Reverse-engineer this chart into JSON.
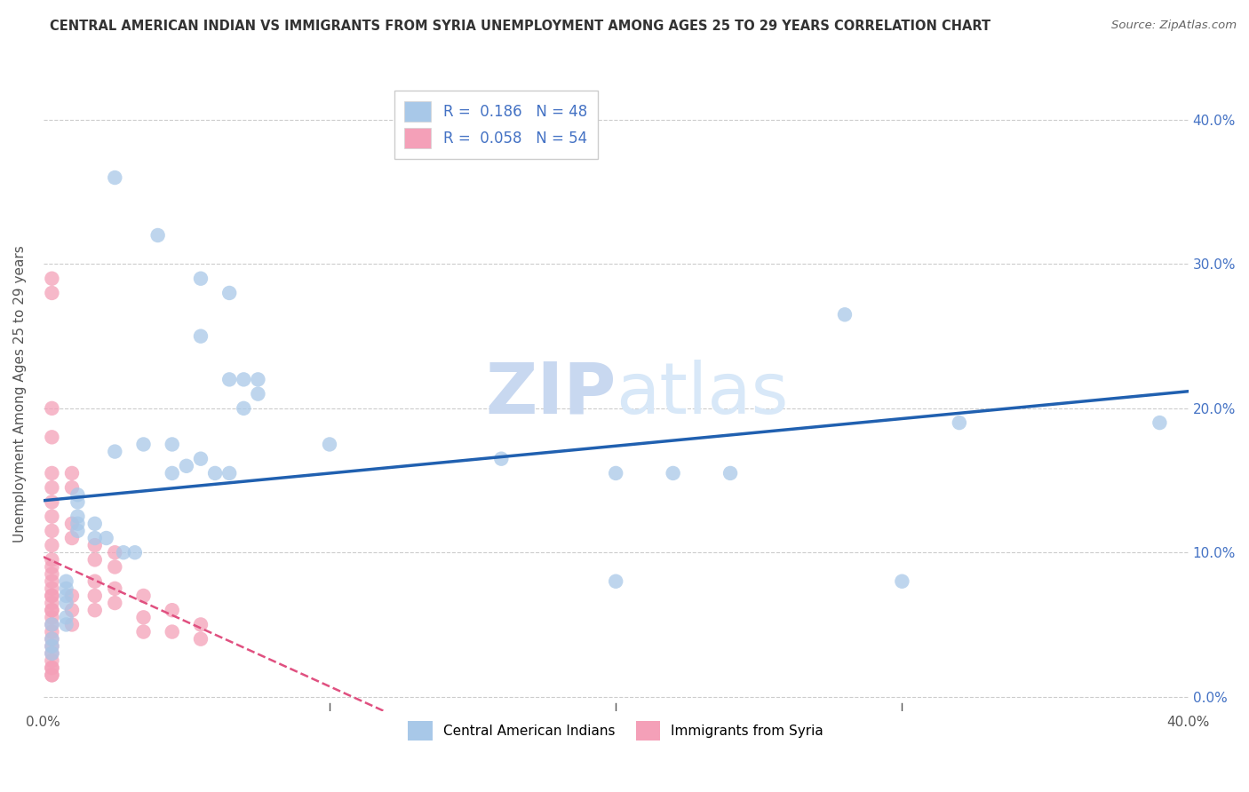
{
  "title": "CENTRAL AMERICAN INDIAN VS IMMIGRANTS FROM SYRIA UNEMPLOYMENT AMONG AGES 25 TO 29 YEARS CORRELATION CHART",
  "source": "Source: ZipAtlas.com",
  "ylabel": "Unemployment Among Ages 25 to 29 years",
  "ytick_labels": [
    "0.0%",
    "10.0%",
    "20.0%",
    "30.0%",
    "40.0%"
  ],
  "ytick_vals": [
    0.0,
    0.1,
    0.2,
    0.3,
    0.4
  ],
  "xlim": [
    0.0,
    0.4
  ],
  "ylim": [
    -0.01,
    0.43
  ],
  "legend_blue_label": "Central American Indians",
  "legend_pink_label": "Immigrants from Syria",
  "R_blue": "0.186",
  "N_blue": "48",
  "R_pink": "0.058",
  "N_pink": "54",
  "blue_color": "#a8c8e8",
  "pink_color": "#f4a0b8",
  "blue_line_color": "#2060b0",
  "pink_line_color": "#e05080",
  "watermark_zip": "ZIP",
  "watermark_atlas": "atlas",
  "blue_x": [
    0.025,
    0.04,
    0.055,
    0.065,
    0.055,
    0.065,
    0.07,
    0.075,
    0.075,
    0.07,
    0.025,
    0.035,
    0.045,
    0.05,
    0.055,
    0.06,
    0.065,
    0.045,
    0.012,
    0.012,
    0.012,
    0.012,
    0.012,
    0.018,
    0.018,
    0.022,
    0.028,
    0.032,
    0.008,
    0.008,
    0.008,
    0.008,
    0.008,
    0.008,
    0.003,
    0.003,
    0.003,
    0.003,
    0.16,
    0.22,
    0.28,
    0.32,
    0.24,
    0.39,
    0.2,
    0.1,
    0.2,
    0.3
  ],
  "blue_y": [
    0.36,
    0.32,
    0.29,
    0.28,
    0.25,
    0.22,
    0.22,
    0.22,
    0.21,
    0.2,
    0.17,
    0.175,
    0.175,
    0.16,
    0.165,
    0.155,
    0.155,
    0.155,
    0.14,
    0.135,
    0.125,
    0.12,
    0.115,
    0.12,
    0.11,
    0.11,
    0.1,
    0.1,
    0.08,
    0.075,
    0.07,
    0.065,
    0.055,
    0.05,
    0.05,
    0.04,
    0.035,
    0.03,
    0.165,
    0.155,
    0.265,
    0.19,
    0.155,
    0.19,
    0.155,
    0.175,
    0.08,
    0.08
  ],
  "pink_x": [
    0.003,
    0.003,
    0.003,
    0.003,
    0.003,
    0.003,
    0.003,
    0.003,
    0.003,
    0.003,
    0.003,
    0.003,
    0.003,
    0.003,
    0.003,
    0.003,
    0.003,
    0.003,
    0.003,
    0.003,
    0.003,
    0.003,
    0.003,
    0.003,
    0.003,
    0.01,
    0.01,
    0.01,
    0.01,
    0.01,
    0.01,
    0.01,
    0.018,
    0.018,
    0.018,
    0.018,
    0.018,
    0.025,
    0.025,
    0.025,
    0.025,
    0.035,
    0.035,
    0.035,
    0.045,
    0.045,
    0.055,
    0.055,
    0.003,
    0.003,
    0.003,
    0.003,
    0.003,
    0.003
  ],
  "pink_y": [
    0.29,
    0.28,
    0.2,
    0.18,
    0.155,
    0.145,
    0.135,
    0.125,
    0.115,
    0.105,
    0.095,
    0.085,
    0.075,
    0.07,
    0.065,
    0.06,
    0.055,
    0.05,
    0.045,
    0.04,
    0.035,
    0.03,
    0.025,
    0.02,
    0.015,
    0.155,
    0.145,
    0.12,
    0.11,
    0.07,
    0.06,
    0.05,
    0.105,
    0.095,
    0.08,
    0.07,
    0.06,
    0.1,
    0.09,
    0.075,
    0.065,
    0.07,
    0.055,
    0.045,
    0.06,
    0.045,
    0.05,
    0.04,
    0.09,
    0.08,
    0.07,
    0.06,
    0.02,
    0.015
  ]
}
